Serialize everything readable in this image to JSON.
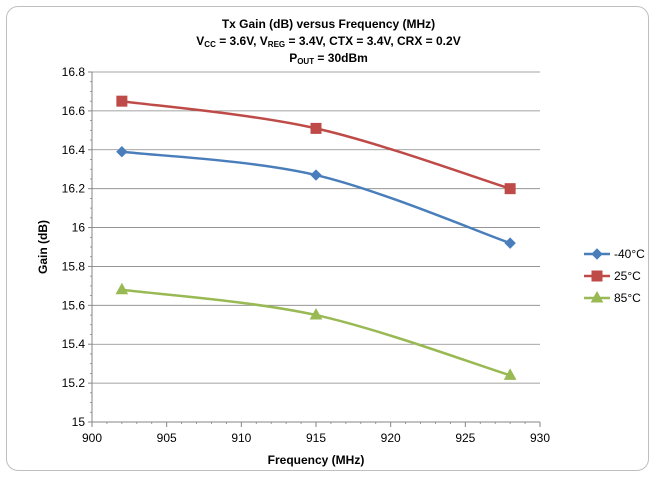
{
  "chart_data": {
    "type": "line",
    "title": "Tx Gain (dB) versus Frequency (MHz)",
    "subtitle": {
      "parts": [
        {
          "t": "V",
          "sub": "CC"
        },
        {
          "t": " = 3.6V, V",
          "sub": "REG"
        },
        {
          "t": " = 3.4V, CTX = 3.4V, CRX = 0.2V"
        }
      ]
    },
    "subtitle2": {
      "parts": [
        {
          "t": "P",
          "sub": "OUT"
        },
        {
          "t": " = 30dBm"
        }
      ]
    },
    "xlabel": "Frequency (MHz)",
    "ylabel": "Gain (dB)",
    "xlim": [
      900,
      930
    ],
    "ylim": [
      15,
      16.8
    ],
    "xticks": [
      "900",
      "905",
      "910",
      "915",
      "920",
      "925",
      "930"
    ],
    "yticks": [
      "15",
      "15.2",
      "15.4",
      "15.6",
      "15.8",
      "16",
      "16.2",
      "16.4",
      "16.6",
      "16.8"
    ],
    "grid": "horizontal",
    "legend_position": "right",
    "x": [
      902,
      915,
      928
    ],
    "series": [
      {
        "name": "-40°C",
        "values": [
          16.39,
          16.27,
          15.92
        ],
        "color": "#4a7ebb",
        "marker": "diamond"
      },
      {
        "name": "25°C",
        "values": [
          16.65,
          16.51,
          16.2
        ],
        "color": "#be4b48",
        "marker": "square"
      },
      {
        "name": "85°C",
        "values": [
          15.68,
          15.55,
          15.24
        ],
        "color": "#98b954",
        "marker": "triangle"
      }
    ]
  }
}
